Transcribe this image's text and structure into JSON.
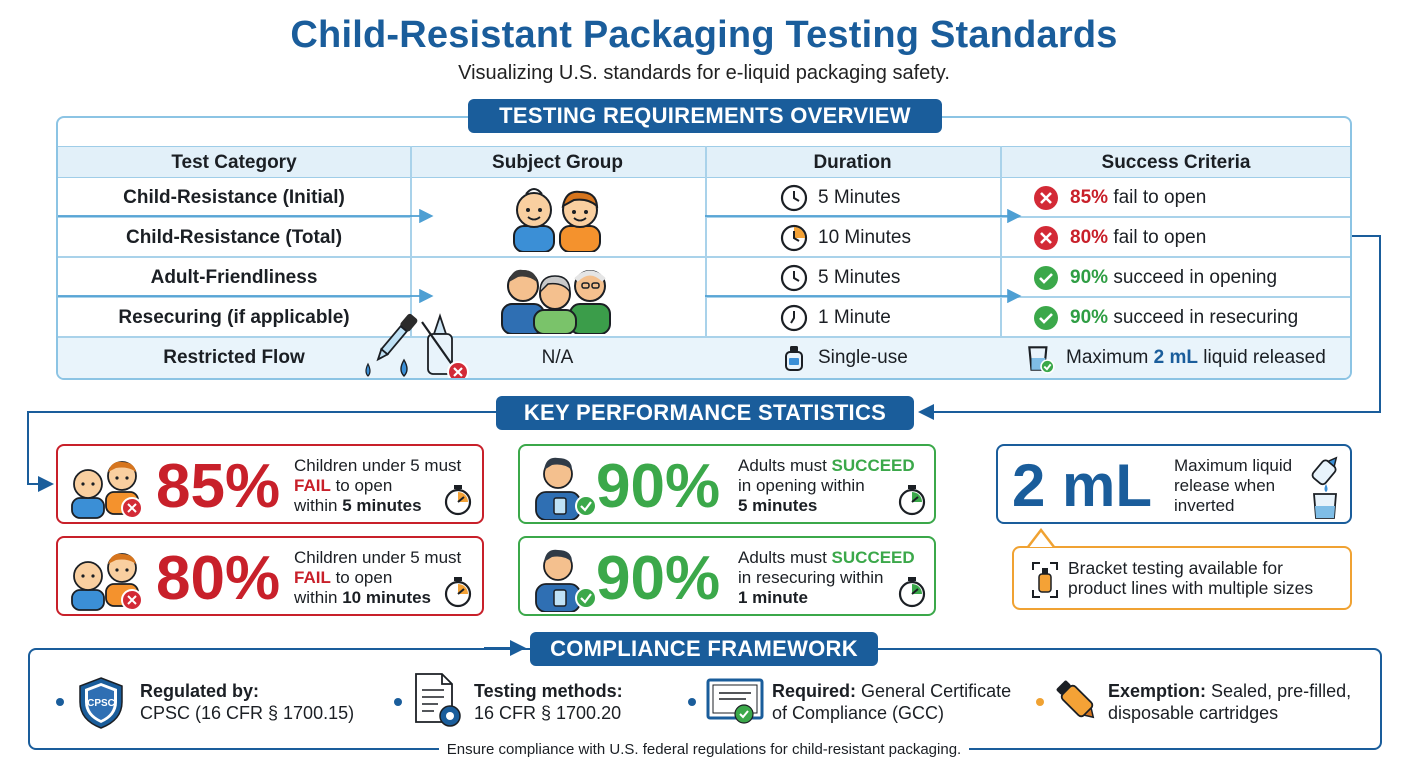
{
  "header": {
    "title": "Child-Resistant Packaging Testing Standards",
    "subtitle": "Visualizing U.S. standards for e-liquid packaging safety."
  },
  "overview": {
    "banner": "TESTING REQUIREMENTS OVERVIEW",
    "columns": [
      "Test Category",
      "Subject Group",
      "Duration",
      "Success Criteria"
    ],
    "rows": [
      {
        "category": "Child-Resistance (Initial)",
        "duration": "5 Minutes",
        "criteria_pct": "85%",
        "criteria_text": "fail to open"
      },
      {
        "category": "Child-Resistance (Total)",
        "duration": "10 Minutes",
        "criteria_pct": "80%",
        "criteria_text": "fail to open"
      },
      {
        "category": "Adult-Friendliness",
        "duration": "5 Minutes",
        "criteria_pct": "90%",
        "criteria_text": "succeed in opening"
      },
      {
        "category": "Resecuring (if applicable)",
        "duration": "1 Minute",
        "criteria_pct": "90%",
        "criteria_text": "succeed in resecuring"
      },
      {
        "category": "Restricted Flow",
        "subject": "N/A",
        "duration": "Single-use",
        "criteria_pre": "Maximum",
        "criteria_value": "2 mL",
        "criteria_post": "liquid released"
      }
    ]
  },
  "stats": {
    "banner": "KEY PERFORMANCE STATISTICS",
    "cards": [
      {
        "value": "85%",
        "line1": "Children under 5 must",
        "emph": "FAIL",
        "line2_rest": "to open",
        "line3_pre": "within",
        "line3_bold": "5 minutes"
      },
      {
        "value": "80%",
        "line1": "Children under 5 must",
        "emph": "FAIL",
        "line2_rest": "to open",
        "line3_pre": "within",
        "line3_bold": "10 minutes"
      },
      {
        "value": "90%",
        "line1_pre": "Adults must",
        "emph": "SUCCEED",
        "line2": "in opening within",
        "line3_bold": "5 minutes"
      },
      {
        "value": "90%",
        "line1_pre": "Adults must",
        "emph": "SUCCEED",
        "line2": "in resecuring within",
        "line3_bold": "1 minute"
      }
    ],
    "liquid": {
      "value": "2 mL",
      "line1": "Maximum liquid",
      "line2": "release when",
      "line3": "inverted"
    },
    "bracket": {
      "line1": "Bracket testing available for",
      "line2": "product lines with multiple sizes"
    }
  },
  "compliance": {
    "banner": "COMPLIANCE FRAMEWORK",
    "items": [
      {
        "label": "Regulated by:",
        "text": "CPSC (16 CFR § 1700.15)",
        "badge": "CPSC"
      },
      {
        "label": "Testing methods:",
        "text": "16 CFR § 1700.20"
      },
      {
        "label": "Required:",
        "text1": "General Certificate",
        "text2": "of Compliance (GCC)"
      },
      {
        "label": "Exemption:",
        "text1": "Sealed, pre-filled,",
        "text2": "disposable cartridges"
      }
    ],
    "footer": "Ensure compliance with U.S. federal regulations for child-resistant packaging."
  },
  "colors": {
    "primary": "#1a5d9b",
    "fail": "#c8202a",
    "success": "#3ba84a",
    "accent": "#f0a232",
    "table_border": "#8cc4e4"
  },
  "icons": [
    "children-icon",
    "adults-group-icon",
    "clock-icon",
    "x-circle-icon",
    "check-circle-icon",
    "dropper-icon",
    "bottle-icon",
    "beaker-icon",
    "stopwatch-icon",
    "shield-icon",
    "document-gear-icon",
    "certificate-icon",
    "cartridge-icon"
  ]
}
